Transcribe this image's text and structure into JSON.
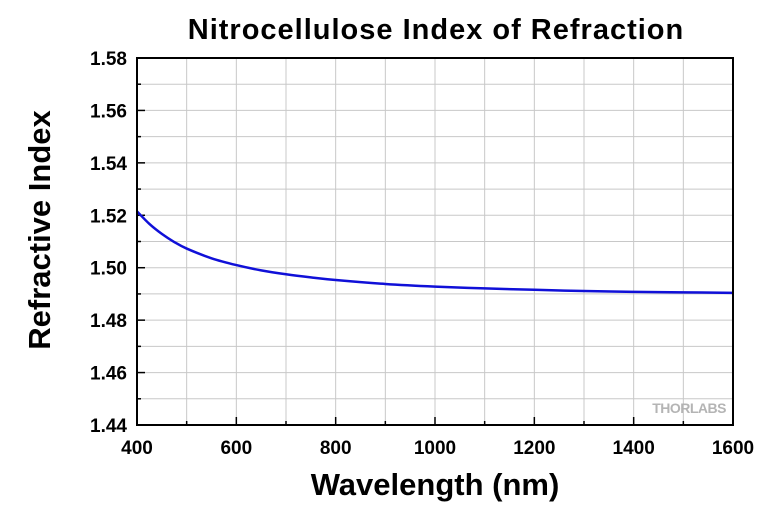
{
  "chart_data": {
    "type": "line",
    "title": "Nitrocellulose Index of Refraction",
    "xlabel": "Wavelength (nm)",
    "ylabel": "Refractive Index",
    "xlim": [
      400,
      1600
    ],
    "ylim": [
      1.44,
      1.58
    ],
    "x_ticks": [
      "400",
      "600",
      "800",
      "1000",
      "1200",
      "1400",
      "1600"
    ],
    "y_ticks": [
      "1.44",
      "1.46",
      "1.48",
      "1.50",
      "1.52",
      "1.54",
      "1.56",
      "1.58"
    ],
    "grid": true,
    "series": [
      {
        "color": "#1010d8",
        "x": [
          400,
          425,
          450,
          475,
          500,
          550,
          600,
          650,
          700,
          750,
          800,
          900,
          1000,
          1100,
          1200,
          1300,
          1400,
          1500,
          1600
        ],
        "y": [
          1.5215,
          1.5167,
          1.5129,
          1.5098,
          1.5073,
          1.5036,
          1.501,
          1.499,
          1.4975,
          1.4963,
          1.4953,
          1.4938,
          1.4928,
          1.4921,
          1.4916,
          1.4911,
          1.4908,
          1.4906,
          1.4904
        ]
      }
    ]
  },
  "watermark": "THORLABS"
}
